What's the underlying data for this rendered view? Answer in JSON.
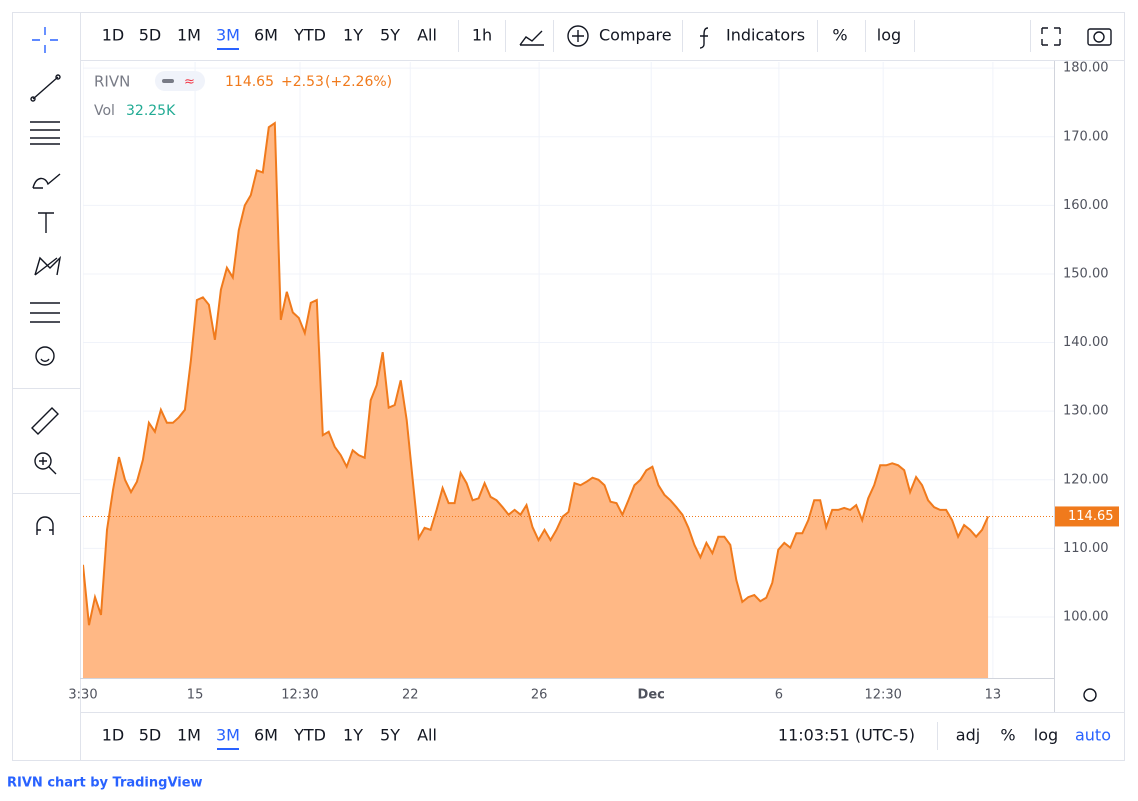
{
  "toolbar": {
    "ranges": [
      "1D",
      "5D",
      "1M",
      "3M",
      "6M",
      "YTD",
      "1Y",
      "5Y",
      "All"
    ],
    "interval": "1h",
    "compare": "Compare",
    "indicators": "Indicators",
    "percent": "%",
    "log": "log"
  },
  "bottom_bar": {
    "time": "11:03:51 (UTC-5)",
    "adj": "adj",
    "percent": "%",
    "log": "log",
    "auto": "auto"
  },
  "footer": "RIVN chart by TradingView",
  "chart_data": {
    "type": "area",
    "symbol": "RIVN",
    "change": "+2.53",
    "change_pct": "(+2.26%)",
    "volume_label": "Vol",
    "volume": "32.25K",
    "series": [
      {
        "name": "RIVN",
        "color": "#f07a1c",
        "fill": "#ffb885",
        "values": [
          107.6,
          98.8,
          102.9,
          100.3,
          112.7,
          118.5,
          123.3,
          120,
          118.2,
          119.7,
          122.9,
          128.3,
          127,
          130.2,
          128.3,
          128.3,
          129.1,
          130.2,
          137.4,
          146.2,
          146.6,
          145.5,
          140.4,
          147.7,
          150.9,
          149.5,
          156.4,
          160,
          161.5,
          165.1,
          164.8,
          171.4,
          172,
          143.3,
          147.4,
          144.4,
          143.6,
          141.4,
          145.8,
          146.2,
          126.5,
          127,
          124.8,
          123.6,
          121.9,
          124.3,
          123.6,
          123.2,
          131.6,
          133.8,
          138.6,
          130.5,
          130.9,
          134.5,
          128.7,
          120,
          111.5,
          113,
          112.7,
          115.6,
          118.8,
          116.6,
          116.6,
          121,
          119.5,
          117,
          117.3,
          119.5,
          117.5,
          117,
          116,
          114.9,
          115.6,
          114.9,
          116.3,
          113.1,
          111.2,
          112.7,
          111.2,
          112.7,
          114.6,
          115.3,
          119.5,
          119.2,
          119.7,
          120.3,
          120,
          119.2,
          116.8,
          116.6,
          114.9,
          117,
          119.2,
          120,
          121.4,
          121.9,
          119.2,
          117.8,
          117,
          116,
          114.9,
          113,
          110.5,
          108.7,
          110.8,
          109.3,
          111.7,
          111.7,
          110.5,
          105.4,
          102.2,
          102.9,
          103.2,
          102.3,
          102.8,
          105,
          109.8,
          110.8,
          110.1,
          112.2,
          112.2,
          114.1,
          117,
          117,
          113.1,
          115.6,
          115.6,
          115.9,
          115.6,
          116.3,
          114.1,
          117.3,
          119.2,
          122.1,
          122.1,
          122.4,
          122.1,
          121.4,
          118.2,
          120.4,
          119.2,
          117,
          116,
          115.6,
          115.6,
          114.1,
          111.7,
          113.4,
          112.7,
          111.7,
          112.7,
          114.65
        ]
      }
    ],
    "xlim": [
      0,
      162
    ],
    "xticks": [
      {
        "value": 0,
        "label": "3:30"
      },
      {
        "value": 18.7,
        "label": "15"
      },
      {
        "value": 36.2,
        "label": "12:30"
      },
      {
        "value": 54.6,
        "label": "22"
      },
      {
        "value": 76.1,
        "label": "26"
      },
      {
        "value": 94.8,
        "label": "Dec"
      },
      {
        "value": 116.1,
        "label": "6"
      },
      {
        "value": 133.5,
        "label": "12:30"
      },
      {
        "value": 151.8,
        "label": "13"
      }
    ],
    "ylim": [
      91.1,
      180.9
    ],
    "yticks": [
      {
        "value": 100,
        "label": "100.00"
      },
      {
        "value": 110,
        "label": "110.00"
      },
      {
        "value": 120,
        "label": "120.00"
      },
      {
        "value": 130,
        "label": "130.00"
      },
      {
        "value": 140,
        "label": "140.00"
      },
      {
        "value": 150,
        "label": "150.00"
      },
      {
        "value": 160,
        "label": "160.00"
      },
      {
        "value": 170,
        "label": "170.00"
      },
      {
        "value": 180,
        "label": "180.00"
      }
    ],
    "grid": true
  }
}
